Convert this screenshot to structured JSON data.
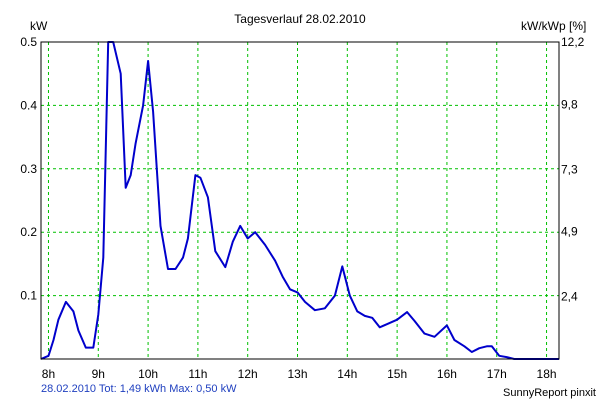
{
  "chart_data": {
    "type": "line",
    "title": "Tagesverlauf 28.02.2010",
    "ylabel": "kW",
    "y2label": "kW/kWp [%]",
    "ylim": [
      0,
      0.5
    ],
    "yticks": [
      0.1,
      0.2,
      0.3,
      0.4,
      0.5
    ],
    "ytick_labels": [
      "0.1",
      "0.2",
      "0.3",
      "0.4",
      "0.5"
    ],
    "y2lim": [
      0,
      12.2
    ],
    "y2ticks": [
      2.4,
      4.9,
      7.3,
      9.8,
      12.2
    ],
    "y2tick_labels": [
      "2,4",
      "4,9",
      "7,3",
      "9,8",
      "12,2"
    ],
    "xlim": [
      7.85,
      18.25
    ],
    "xticks": [
      8,
      9,
      10,
      11,
      12,
      13,
      14,
      15,
      16,
      17,
      18
    ],
    "xtick_labels": [
      "8h",
      "9h",
      "10h",
      "11h",
      "12h",
      "13h",
      "14h",
      "15h",
      "16h",
      "17h",
      "18h"
    ],
    "grid": true,
    "series": [
      {
        "color": "#0000cc",
        "x": [
          7.85,
          8.0,
          8.1,
          8.2,
          8.35,
          8.5,
          8.6,
          8.75,
          8.9,
          9.0,
          9.1,
          9.2,
          9.3,
          9.45,
          9.55,
          9.65,
          9.75,
          9.9,
          10.0,
          10.1,
          10.25,
          10.4,
          10.55,
          10.7,
          10.8,
          10.95,
          11.05,
          11.2,
          11.35,
          11.55,
          11.7,
          11.85,
          12.0,
          12.15,
          12.35,
          12.55,
          12.7,
          12.85,
          13.0,
          13.15,
          13.35,
          13.55,
          13.75,
          13.9,
          14.05,
          14.2,
          14.35,
          14.5,
          14.65,
          14.8,
          15.0,
          15.2,
          15.35,
          15.55,
          15.75,
          16.0,
          16.15,
          16.35,
          16.5,
          16.65,
          16.8,
          16.9,
          17.05,
          17.2,
          17.35,
          17.5,
          17.7,
          17.85,
          18.0,
          18.25
        ],
        "y": [
          0.0,
          0.005,
          0.03,
          0.062,
          0.09,
          0.075,
          0.045,
          0.018,
          0.018,
          0.07,
          0.16,
          0.5,
          0.5,
          0.45,
          0.27,
          0.29,
          0.34,
          0.4,
          0.47,
          0.39,
          0.21,
          0.142,
          0.142,
          0.16,
          0.19,
          0.29,
          0.286,
          0.255,
          0.17,
          0.145,
          0.185,
          0.21,
          0.19,
          0.2,
          0.18,
          0.155,
          0.13,
          0.11,
          0.105,
          0.09,
          0.077,
          0.08,
          0.1,
          0.146,
          0.1,
          0.075,
          0.068,
          0.065,
          0.05,
          0.055,
          0.062,
          0.074,
          0.06,
          0.04,
          0.035,
          0.053,
          0.03,
          0.02,
          0.011,
          0.017,
          0.02,
          0.02,
          0.005,
          0.003,
          0.0,
          0.0,
          0.0,
          0.0,
          0.0,
          0.0
        ]
      }
    ]
  },
  "footer": {
    "summary": "28.02.2010 Tot: 1,49 kWh Max: 0,50 kW",
    "credit": "SunnyReport pinxit"
  }
}
